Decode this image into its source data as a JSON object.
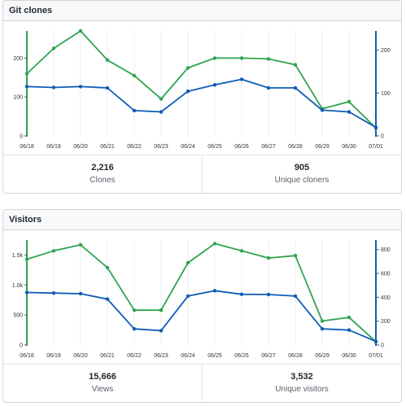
{
  "colors": {
    "green": "#2ea44f",
    "blue": "#0d5cb6",
    "grid": "#eeeeee"
  },
  "panels": {
    "clones": {
      "title": "Git clones",
      "stat1": {
        "value": "2,216",
        "label": "Clones"
      },
      "stat2": {
        "value": "905",
        "label": "Unique cloners"
      }
    },
    "visitors": {
      "title": "Visitors",
      "stat1": {
        "value": "15,666",
        "label": "Views"
      },
      "stat2": {
        "value": "3,532",
        "label": "Unique visitors"
      }
    }
  },
  "chart_data": [
    {
      "type": "line",
      "x": [
        "06/18",
        "06/19",
        "06/20",
        "06/21",
        "06/22",
        "06/23",
        "06/24",
        "06/25",
        "06/26",
        "06/27",
        "06/28",
        "06/29",
        "06/30",
        "07/01"
      ],
      "left_axis": {
        "ticks": [
          "0",
          "100",
          "200"
        ],
        "tick_values": [
          0,
          100,
          200
        ],
        "ylim": [
          0,
          270
        ]
      },
      "right_axis": {
        "ticks": [
          "0",
          "100",
          "200"
        ],
        "tick_values": [
          0,
          100,
          200
        ],
        "ylim": [
          0,
          245
        ]
      },
      "series": [
        {
          "axis": "left",
          "color": "green",
          "values": [
            160,
            225,
            270,
            195,
            155,
            95,
            175,
            200,
            200,
            198,
            183,
            70,
            88,
            20
          ]
        },
        {
          "axis": "right",
          "color": "blue",
          "values": [
            115,
            113,
            115,
            112,
            59,
            56,
            104,
            119,
            132,
            112,
            112,
            60,
            56,
            20
          ]
        }
      ]
    },
    {
      "type": "line",
      "x": [
        "06/18",
        "06/19",
        "06/20",
        "06/21",
        "06/22",
        "06/23",
        "06/24",
        "06/25",
        "06/26",
        "06/27",
        "06/28",
        "06/29",
        "06/30",
        "07/01"
      ],
      "left_axis": {
        "ticks": [
          "0",
          "500",
          "1.0k",
          "1.5k"
        ],
        "tick_values": [
          0,
          500,
          1000,
          1500
        ],
        "ylim": [
          0,
          1750
        ]
      },
      "right_axis": {
        "ticks": [
          "0",
          "200",
          "400",
          "600",
          "800"
        ],
        "tick_values": [
          0,
          200,
          400,
          600,
          800
        ],
        "ylim": [
          0,
          880
        ]
      },
      "series": [
        {
          "axis": "left",
          "color": "green",
          "values": [
            1430,
            1570,
            1670,
            1290,
            580,
            580,
            1370,
            1690,
            1570,
            1450,
            1490,
            400,
            460,
            55
          ]
        },
        {
          "axis": "right",
          "color": "blue",
          "values": [
            440,
            435,
            430,
            385,
            135,
            120,
            410,
            455,
            425,
            423,
            410,
            135,
            125,
            30
          ]
        }
      ]
    }
  ]
}
